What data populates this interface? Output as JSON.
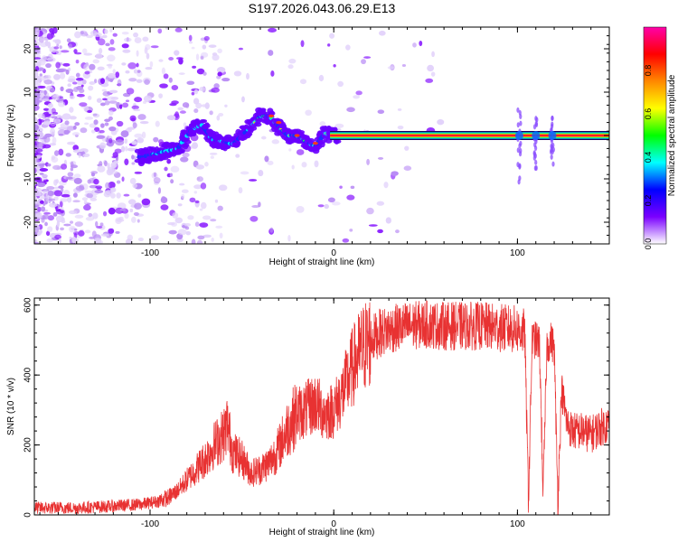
{
  "title": "S197.2026.043.06.29.E13",
  "chart_data": [
    {
      "type": "heatmap",
      "id": "spectrogram",
      "xlabel": "Height of straight line (km)",
      "ylabel": "Frequency (Hz)",
      "xlim": [
        -163,
        150
      ],
      "ylim": [
        -25,
        25
      ],
      "xticks": [
        -100,
        0,
        100
      ],
      "yticks": [
        -20,
        -10,
        0,
        10,
        20
      ],
      "colorbar": {
        "label": "Normalized spectral amplitude",
        "range": [
          0,
          1
        ],
        "ticks": [
          "0.0",
          "0.2",
          "0.4",
          "0.6",
          "0.8"
        ],
        "colors": [
          "#ffffff",
          "#7a00ff",
          "#0000ff",
          "#00ffff",
          "#00ff00",
          "#ffff00",
          "#ff8800",
          "#ff0000",
          "#ff00aa"
        ]
      },
      "ridge": {
        "x": [
          -105,
          -95,
          -85,
          -78,
          -72,
          -66,
          -60,
          -55,
          -50,
          -45,
          -40,
          -35,
          -30,
          -25,
          -20,
          -15,
          -10,
          -5,
          0,
          10,
          50,
          100,
          150
        ],
        "y": [
          -5,
          -4,
          -3,
          1,
          2.5,
          -1,
          -1.5,
          -2,
          0,
          2,
          4.5,
          4.5,
          2,
          0,
          0,
          -1.5,
          -2.5,
          0.5,
          0,
          0,
          0,
          0,
          0
        ]
      },
      "spikes": [
        {
          "x": 101,
          "y_min": -13,
          "y_max": 6
        },
        {
          "x": 110,
          "y_min": -8,
          "y_max": 4
        },
        {
          "x": 119,
          "y_min": -7,
          "y_max": 4
        }
      ]
    },
    {
      "type": "line",
      "id": "snr",
      "xlabel": "Height of straight line (km)",
      "ylabel": "SNR (10 * v/v)",
      "xlim": [
        -163,
        150
      ],
      "ylim": [
        0,
        620
      ],
      "xticks": [
        -100,
        0,
        100
      ],
      "yticks": [
        0,
        200,
        400,
        600
      ],
      "color": "#e83232",
      "series": [
        {
          "name": "SNR",
          "x": [
            -163,
            -140,
            -120,
            -105,
            -95,
            -90,
            -85,
            -80,
            -75,
            -70,
            -65,
            -60,
            -58,
            -55,
            -50,
            -45,
            -40,
            -35,
            -30,
            -25,
            -20,
            -15,
            -10,
            -5,
            0,
            5,
            10,
            15,
            20,
            25,
            30,
            40,
            50,
            60,
            70,
            80,
            90,
            100,
            104,
            106,
            108,
            110,
            112,
            114,
            116,
            118,
            120,
            122,
            124,
            127,
            130,
            135,
            140,
            145,
            150
          ],
          "y": [
            20,
            20,
            25,
            30,
            40,
            50,
            70,
            100,
            130,
            160,
            200,
            230,
            260,
            180,
            160,
            120,
            130,
            150,
            190,
            250,
            290,
            300,
            320,
            290,
            300,
            350,
            420,
            470,
            500,
            520,
            530,
            540,
            545,
            540,
            540,
            540,
            535,
            530,
            520,
            40,
            500,
            500,
            490,
            60,
            480,
            500,
            480,
            40,
            360,
            260,
            240,
            240,
            230,
            250,
            260
          ]
        }
      ]
    }
  ]
}
